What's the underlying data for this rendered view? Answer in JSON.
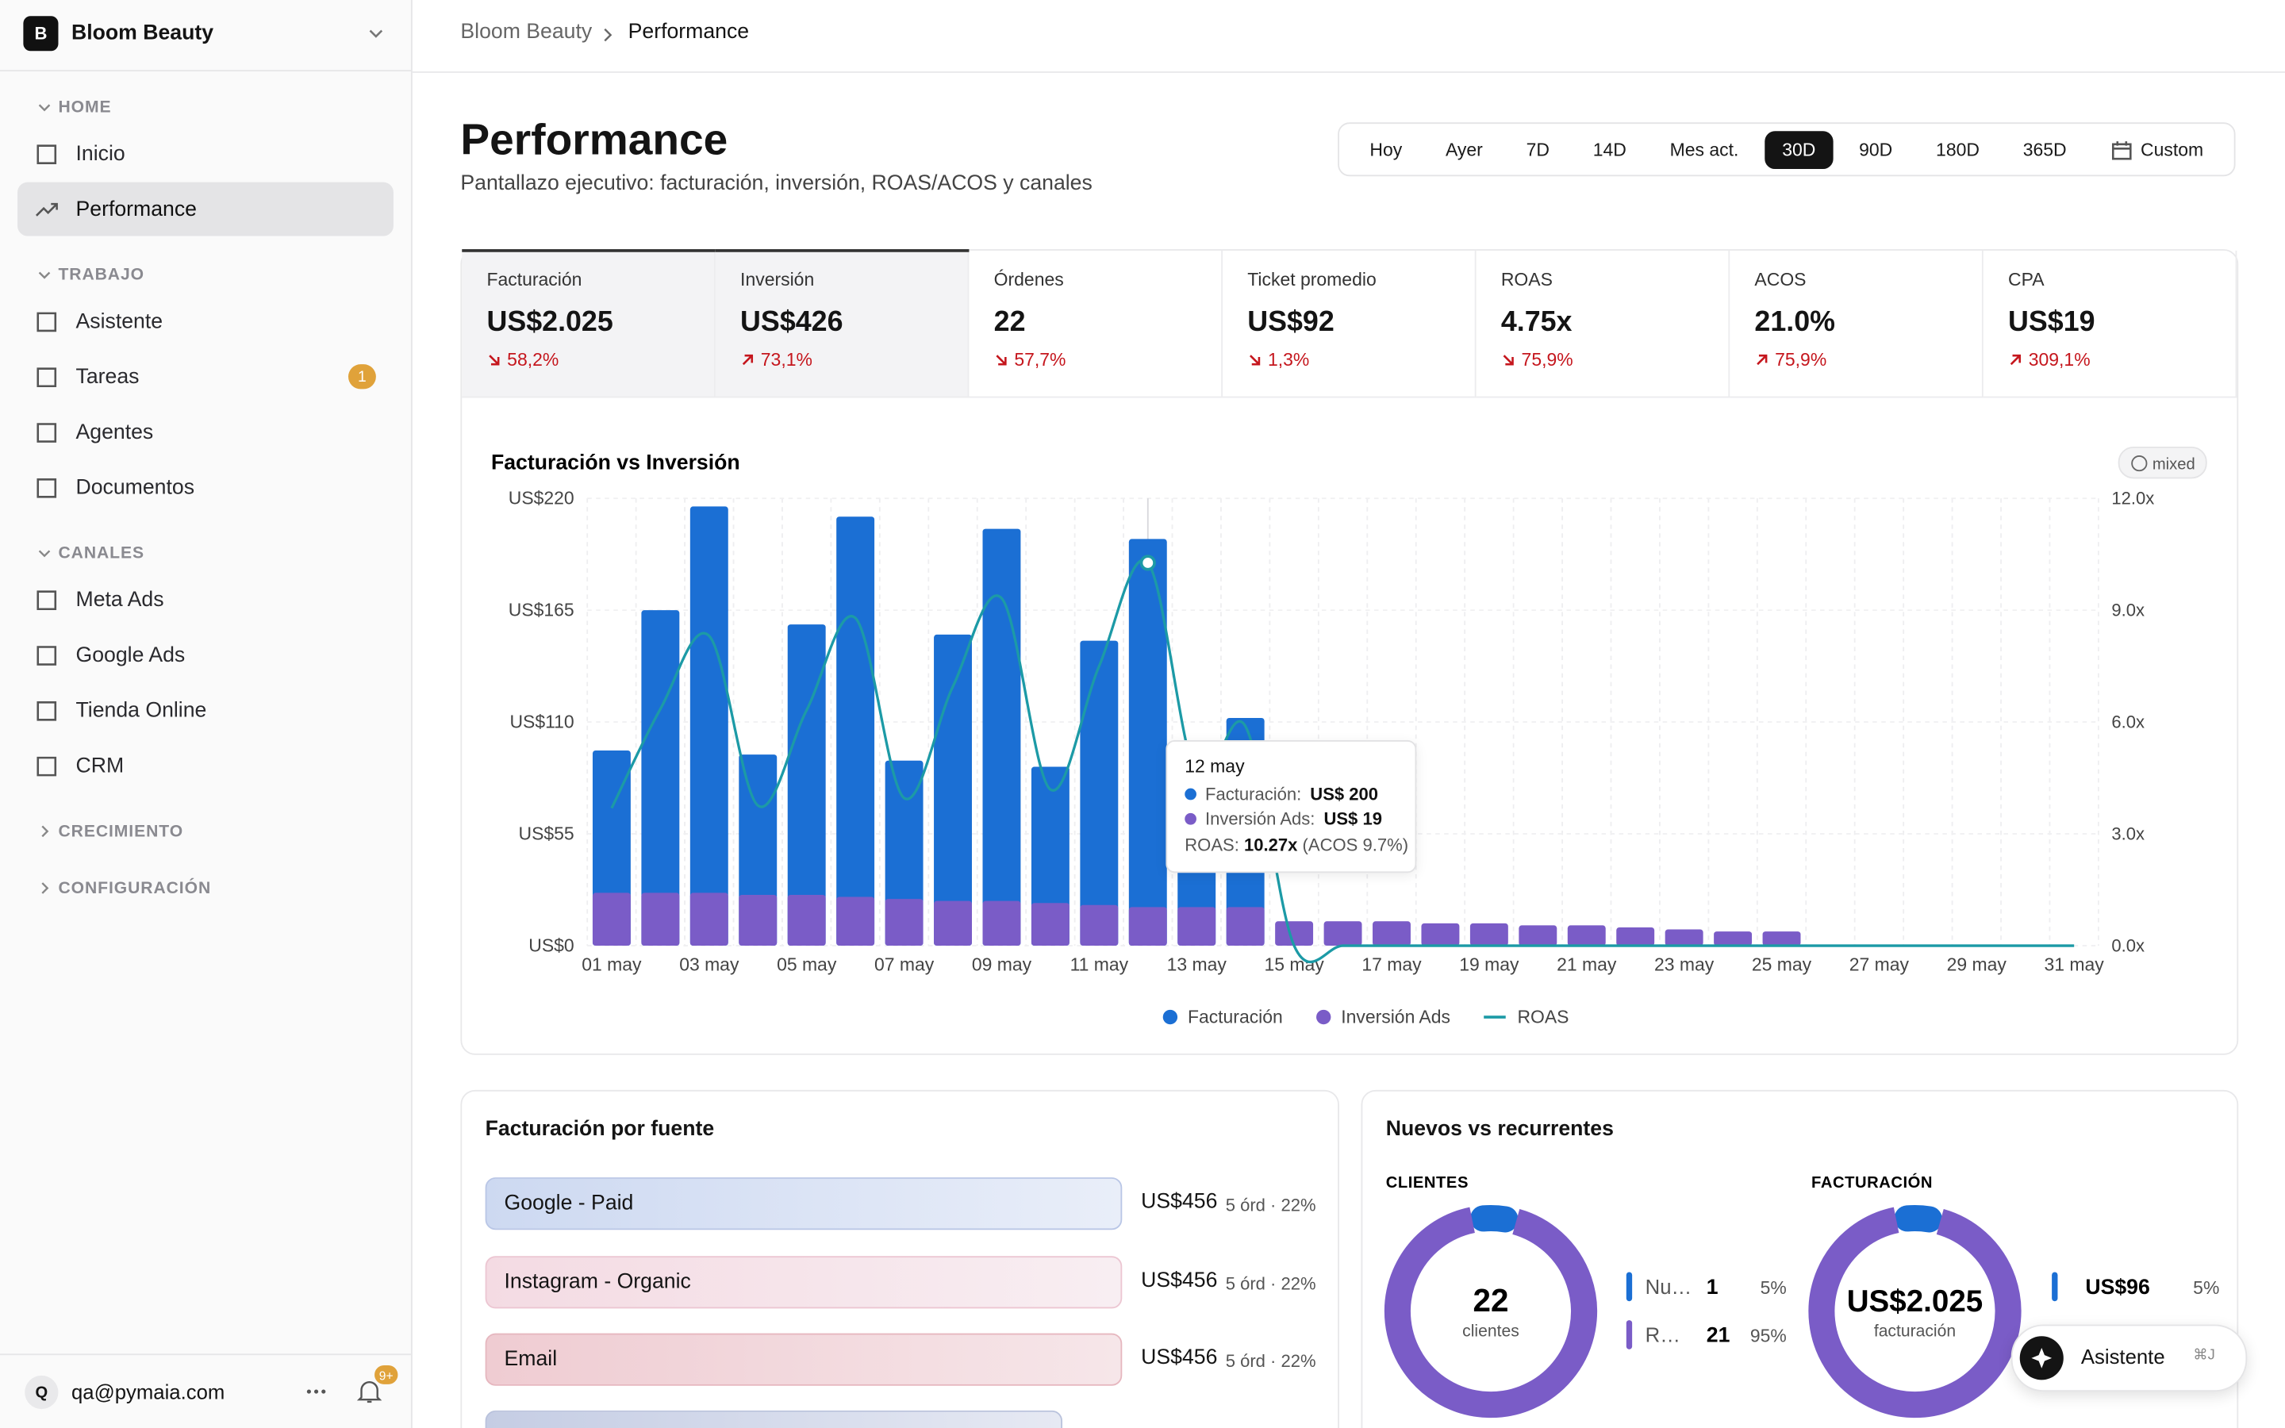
{
  "sidebar": {
    "workspace": {
      "initial": "B",
      "name": "Bloom Beauty"
    },
    "sections": [
      {
        "title": "HOME",
        "open": true,
        "items": [
          {
            "label": "Inicio"
          },
          {
            "label": "Performance",
            "active": true
          }
        ]
      },
      {
        "title": "TRABAJO",
        "open": true,
        "items": [
          {
            "label": "Asistente"
          },
          {
            "label": "Tareas",
            "badge": "1"
          },
          {
            "label": "Agentes"
          },
          {
            "label": "Documentos"
          }
        ]
      },
      {
        "title": "CANALES",
        "open": true,
        "items": [
          {
            "label": "Meta Ads"
          },
          {
            "label": "Google Ads"
          },
          {
            "label": "Tienda Online"
          },
          {
            "label": "CRM"
          }
        ]
      },
      {
        "title": "CRECIMIENTO",
        "open": false,
        "items": []
      },
      {
        "title": "CONFIGURACIÓN",
        "open": false,
        "items": []
      }
    ],
    "user": {
      "initial": "Q",
      "email": "qa@pymaia.com"
    },
    "notifications_badge": "9+"
  },
  "breadcrumb": [
    "Bloom Beauty",
    "Performance"
  ],
  "header": {
    "title": "Performance",
    "subtitle": "Pantallazo ejecutivo: facturación, inversión, ROAS/ACOS y canales",
    "ranges": [
      {
        "label": "Hoy"
      },
      {
        "label": "Ayer"
      },
      {
        "label": "7D"
      },
      {
        "label": "14D"
      },
      {
        "label": "Mes act."
      },
      {
        "label": "30D",
        "active": true
      },
      {
        "label": "90D"
      },
      {
        "label": "180D"
      },
      {
        "label": "365D"
      },
      {
        "label": "Custom",
        "icon": "calendar"
      }
    ]
  },
  "kpis": [
    {
      "label": "Facturación",
      "value": "US$2.025",
      "change": "58,2%",
      "trend": "down",
      "selected": true
    },
    {
      "label": "Inversión",
      "value": "US$426",
      "change": "73,1%",
      "trend": "up",
      "selected": true
    },
    {
      "label": "Órdenes",
      "value": "22",
      "change": "57,7%",
      "trend": "down"
    },
    {
      "label": "Ticket promedio",
      "value": "US$92",
      "change": "1,3%",
      "trend": "down"
    },
    {
      "label": "ROAS",
      "value": "4.75x",
      "change": "75,9%",
      "trend": "down"
    },
    {
      "label": "ACOS",
      "value": "21.0%",
      "change": "75,9%",
      "trend": "up"
    },
    {
      "label": "CPA",
      "value": "US$19",
      "change": "309,1%",
      "trend": "up"
    }
  ],
  "chart": {
    "type": "bar",
    "title": "Facturación vs Inversión",
    "badge": "mixed",
    "categories": [
      "01 may",
      null,
      "03 may",
      null,
      "05 may",
      null,
      "07 may",
      null,
      "09 may",
      null,
      "11 may",
      null,
      "13 may",
      null,
      "15 may",
      null,
      "17 may",
      null,
      "19 may",
      null,
      "21 may",
      null,
      "23 may",
      null,
      "25 may",
      null,
      "27 may",
      null,
      "29 may",
      null,
      "31 may"
    ],
    "series": [
      {
        "name": "Facturación",
        "color": "#1b6fd4",
        "values": [
          96,
          165,
          216,
          94,
          158,
          211,
          91,
          153,
          205,
          88,
          150,
          200,
          86,
          112,
          0,
          0,
          0,
          0,
          0,
          0,
          0,
          0,
          0,
          0,
          0,
          0,
          0,
          0,
          0,
          0,
          0
        ]
      },
      {
        "name": "Inversión Ads",
        "color": "#7a5cc7",
        "values": [
          26,
          26,
          26,
          25,
          25,
          24,
          23,
          22,
          22,
          21,
          20,
          19,
          19,
          19,
          12,
          12,
          12,
          11,
          11,
          10,
          10,
          9,
          8,
          7,
          7,
          0,
          0,
          0,
          0,
          0,
          0
        ]
      },
      {
        "name": "ROAS",
        "color": "#1c9aa6",
        "type": "line",
        "axis": "y2",
        "values": [
          3.69,
          6.35,
          8.31,
          3.76,
          6.32,
          8.79,
          3.96,
          6.95,
          9.32,
          4.19,
          7.5,
          10.27,
          4.53,
          5.89,
          0,
          0,
          0,
          0,
          0,
          0,
          0,
          0,
          0,
          0,
          0,
          0,
          0,
          0,
          0,
          0,
          0
        ]
      }
    ],
    "ylim": [
      0,
      220
    ],
    "yticks": [
      {
        "value": 0,
        "label": "US$0"
      },
      {
        "value": 55,
        "label": "US$55"
      },
      {
        "value": 110,
        "label": "US$110"
      },
      {
        "value": 165,
        "label": "US$165"
      },
      {
        "value": 220,
        "label": "US$220"
      }
    ],
    "y2lim": [
      0,
      12
    ],
    "y2ticks": [
      {
        "value": 0,
        "label": "0.0x"
      },
      {
        "value": 3,
        "label": "3.0x"
      },
      {
        "value": 6,
        "label": "6.0x"
      },
      {
        "value": 9,
        "label": "9.0x"
      },
      {
        "value": 12,
        "label": "12.0x"
      }
    ],
    "grid": true,
    "tooltip": {
      "index": 11,
      "title": "12 may",
      "rows": [
        {
          "label": "Facturación:",
          "value": "US$ 200"
        },
        {
          "label": "Inversión Ads:",
          "value": "US$ 19"
        }
      ],
      "roas_label": "ROAS:",
      "roas_value": "10.27x",
      "acos": "(ACOS 9.7%)"
    }
  },
  "sources": {
    "title": "Facturación por fuente",
    "rows": [
      {
        "name": "Google - Paid",
        "amount": "US$456",
        "meta": "5 órd · 22%",
        "color": "blue"
      },
      {
        "name": "Instagram - Organic",
        "amount": "US$456",
        "meta": "5 órd · 22%",
        "color": "pink"
      },
      {
        "name": "Email",
        "amount": "US$456",
        "meta": "5 órd · 22%",
        "color": "red"
      }
    ]
  },
  "customers": {
    "title": "Nuevos vs recurrentes",
    "clientes": {
      "label": "CLIENTES",
      "center_value": "22",
      "center_label": "clientes",
      "rows": [
        {
          "name": "Nu…",
          "count": "1",
          "share": 5,
          "share_label": "5%"
        },
        {
          "name": "R…",
          "count": "21",
          "share": 95,
          "share_label": "95%"
        }
      ]
    },
    "facturacion": {
      "label": "FACTURACIÓN",
      "center_value": "US$2.025",
      "center_label": "facturación",
      "rows": [
        {
          "amount": "US$96",
          "share": 5,
          "share_label": "5%"
        }
      ]
    }
  },
  "assistant": {
    "label": "Asistente",
    "shortcut": "⌘J"
  }
}
